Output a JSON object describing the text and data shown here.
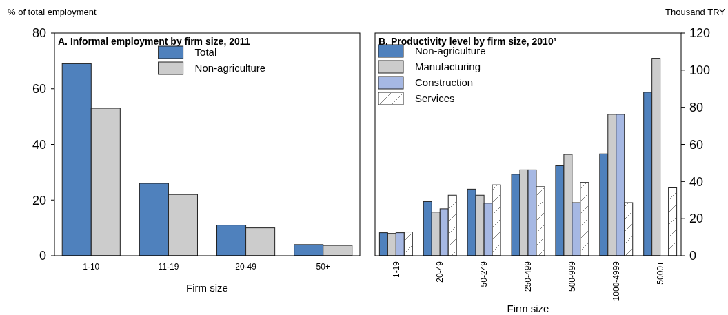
{
  "chart_data": [
    {
      "type": "bar",
      "title": "A. Informal employment by firm size, 2011",
      "ylabel": "% of total employment",
      "xlabel": "Firm size",
      "categories": [
        "1-10",
        "11-19",
        "20-49",
        "50+"
      ],
      "series": [
        {
          "name": "Total",
          "color": "#4f81bd",
          "values": [
            69,
            26,
            11,
            4
          ]
        },
        {
          "name": "Non-agriculture",
          "color": "#cccccc",
          "values": [
            53,
            22,
            10,
            3.7
          ]
        }
      ],
      "ylim": [
        0,
        80
      ],
      "yticks": [
        0,
        20,
        40,
        60,
        80
      ],
      "legend": "top"
    },
    {
      "type": "bar",
      "title": "B. Productivity level by firm size, 2010¹",
      "y2label": "Thousand TRY",
      "xlabel": "Firm size",
      "categories": [
        "1-19",
        "20-49",
        "50-249",
        "250-499",
        "500-999",
        "1000-4999",
        "5000+"
      ],
      "series": [
        {
          "name": "Non-agriculture",
          "color": "#4f81bd",
          "axis": "y2",
          "values": [
            12.4,
            29.2,
            35.9,
            43.9,
            48.5,
            54.9,
            88.1
          ]
        },
        {
          "name": "Manufacturing",
          "color": "#cccccc",
          "axis": "y2",
          "values": [
            12,
            23.5,
            32.6,
            46.3,
            54.6,
            76.2,
            106.4
          ]
        },
        {
          "name": "Construction",
          "color": "#a6b8e3",
          "axis": "y2",
          "values": [
            12.4,
            25.3,
            28.3,
            46.3,
            28.6,
            76.2,
            null
          ]
        },
        {
          "name": "Services",
          "color": "#ffffff",
          "axis": "y2",
          "values": [
            12.8,
            32.6,
            38.2,
            37.2,
            39.5,
            28.6,
            36.6
          ]
        }
      ],
      "y2lim": [
        0,
        120
      ],
      "y2ticks": [
        0,
        20,
        40,
        60,
        80,
        100,
        120
      ],
      "legend": "top left"
    }
  ]
}
